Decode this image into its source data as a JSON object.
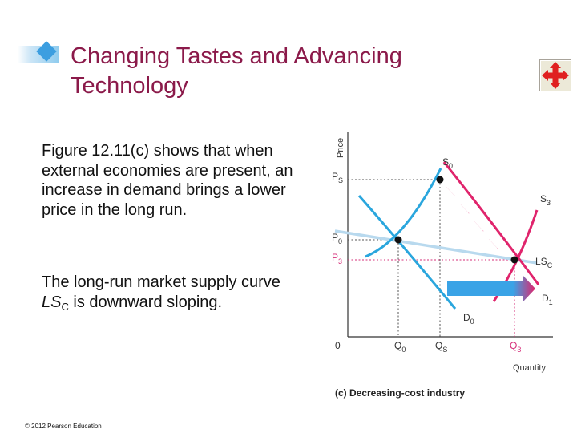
{
  "slide": {
    "title": "Changing Tastes and Advancing Technology",
    "paragraph1": "Figure 12.11(c) shows that when external economies are present, an increase in demand brings a lower price in the long run.",
    "paragraph2_prefix": "The long-run market supply curve ",
    "paragraph2_curve": "LS",
    "paragraph2_sub": "C",
    "paragraph2_suffix": " is downward sloping.",
    "footer": "© 2012 Pearson Education"
  },
  "figure": {
    "y_axis_label": "Price",
    "x_axis_label": "Quantity",
    "caption": "(c) Decreasing-cost industry",
    "origin_label": "0",
    "price_labels": {
      "ps": [
        "P",
        "S"
      ],
      "p0": [
        "P",
        "0"
      ],
      "p3": [
        "P",
        "3"
      ]
    },
    "quantity_labels": {
      "q0": [
        "Q",
        "0"
      ],
      "qs": [
        "Q",
        "S"
      ],
      "q3": [
        "Q",
        "3"
      ]
    },
    "curve_labels": {
      "s0": [
        "S",
        "0"
      ],
      "s3": [
        "S",
        "3"
      ],
      "lsc": [
        "LS",
        "C"
      ],
      "d0": [
        "D",
        "0"
      ],
      "d1": [
        "D",
        "1"
      ]
    },
    "colors": {
      "demand": "#2aa6dd",
      "supply": "#e0246c",
      "long_run_supply": "#b8d9ee",
      "shift_arrow": "#3aa3e6",
      "magenta_label": "#d62f7a"
    }
  }
}
